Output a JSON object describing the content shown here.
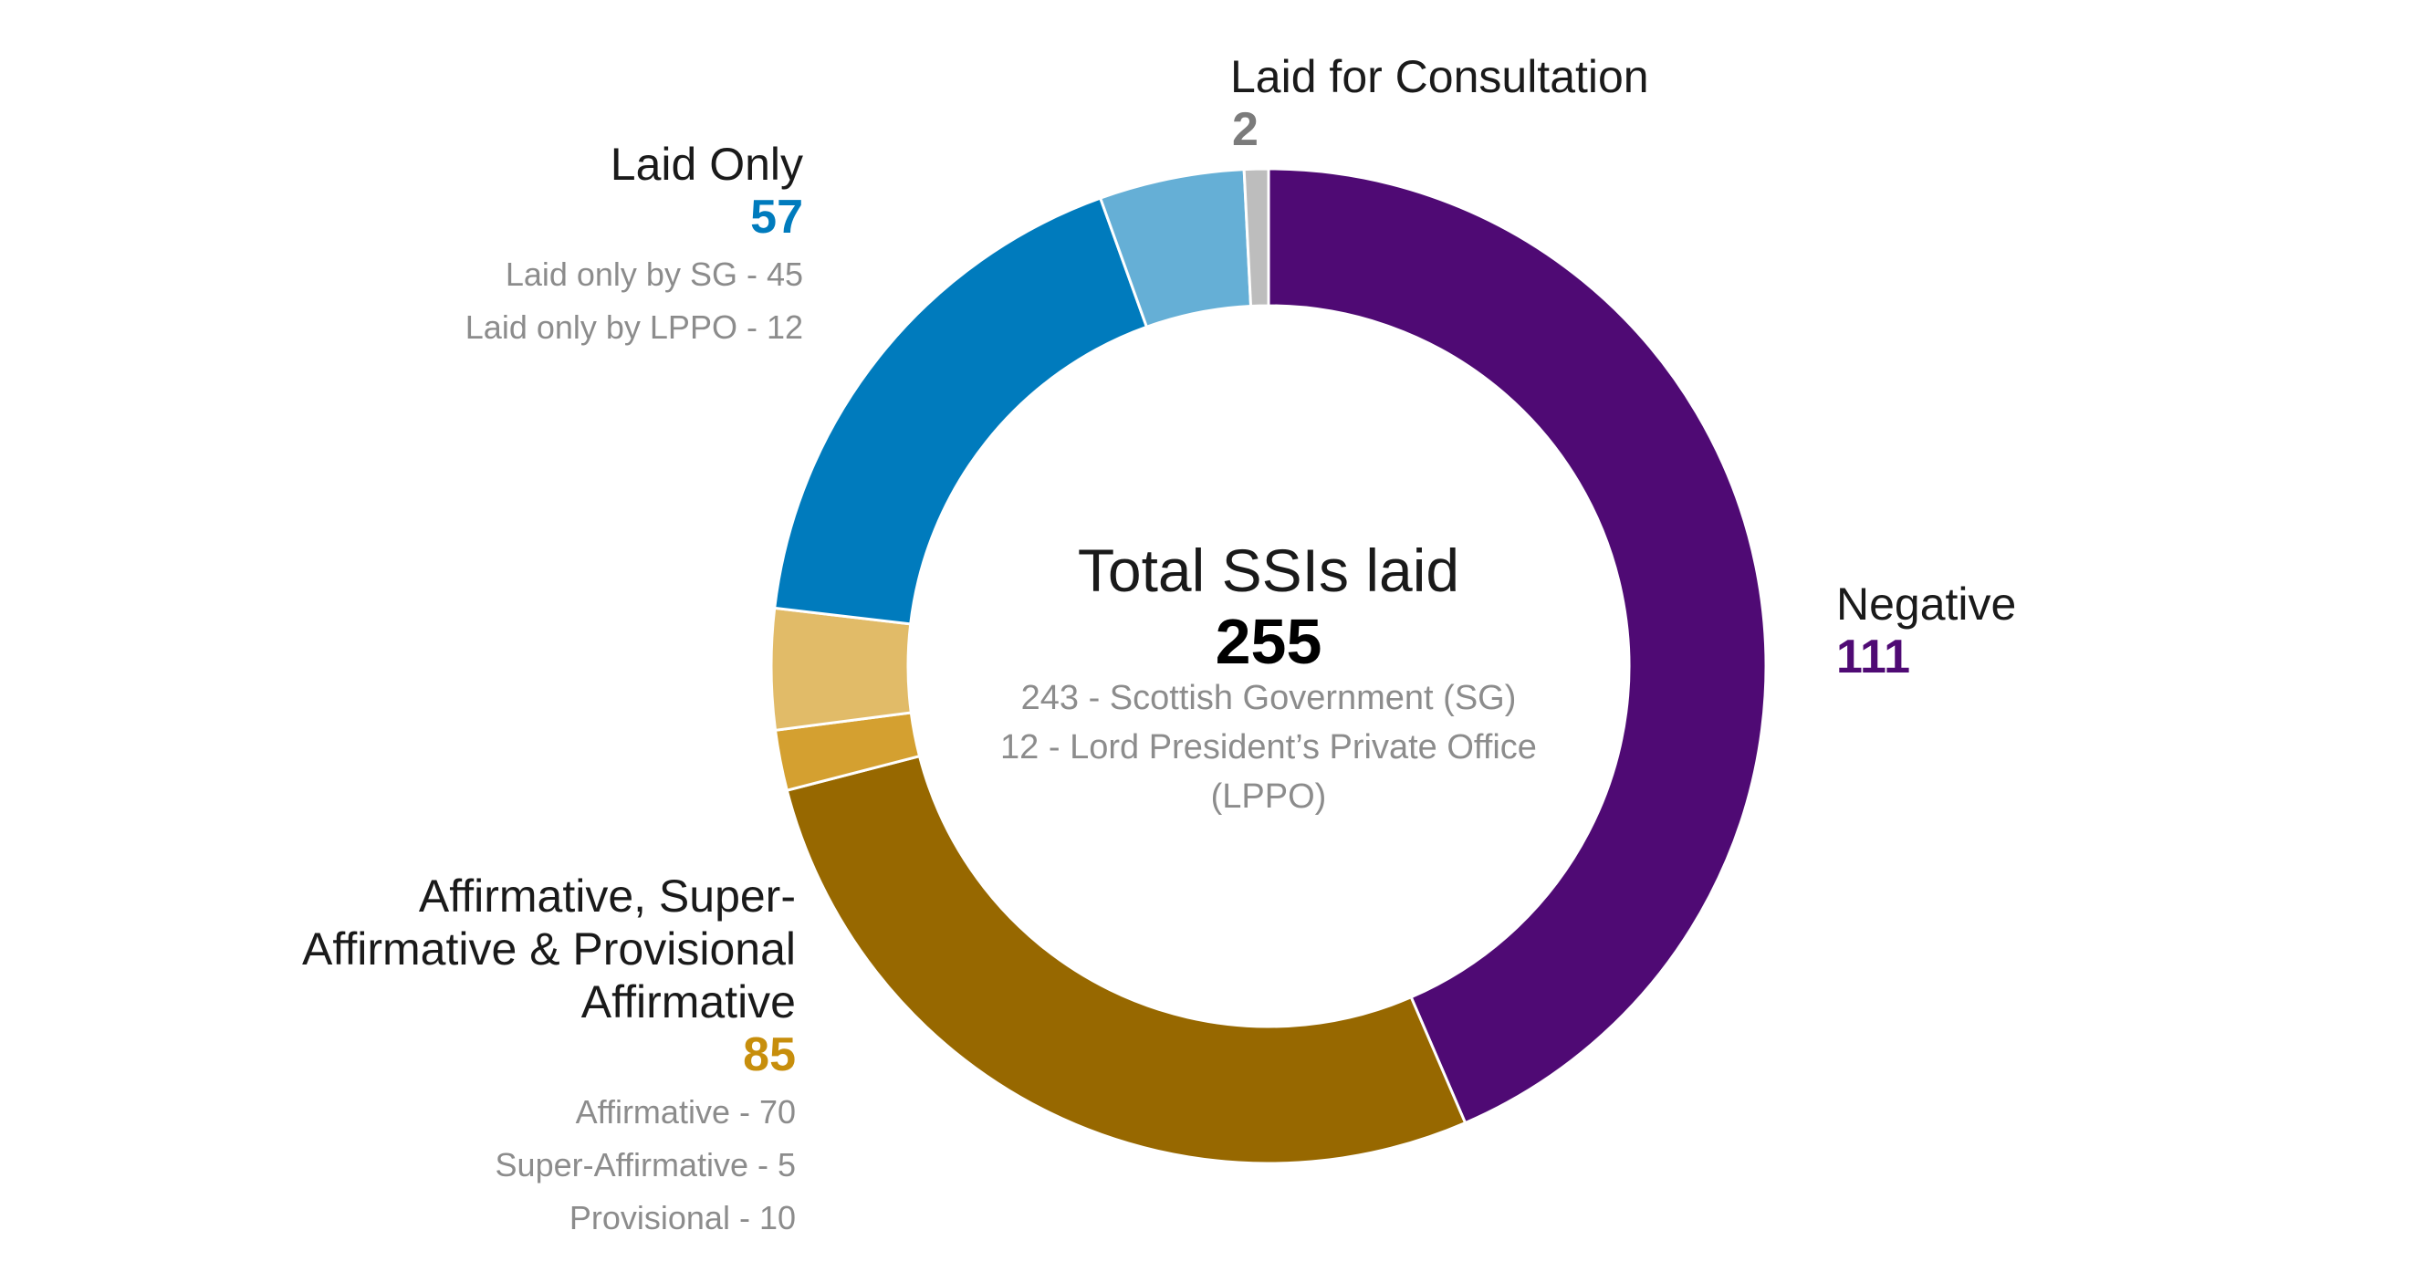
{
  "chart_data": {
    "type": "pie",
    "center": {
      "title": "Total SSIs laid",
      "total": "255",
      "lines": [
        "243 - Scottish Government (SG)",
        "12 - Lord President’s Private Office",
        "(LPPO)"
      ]
    },
    "slices": [
      {
        "key": "negative",
        "label": "Negative",
        "value": 111,
        "color": "#4f0a74"
      },
      {
        "key": "affirmative",
        "label": "Affirmative",
        "value": 70,
        "color": "#976800"
      },
      {
        "key": "super_affirmative",
        "label": "Super-Affirmative",
        "value": 5,
        "color": "#d4a030"
      },
      {
        "key": "provisional",
        "label": "Provisional",
        "value": 10,
        "color": "#e1bb68"
      },
      {
        "key": "laid_only_sg",
        "label": "Laid only by SG",
        "value": 45,
        "color": "#007bbd"
      },
      {
        "key": "laid_only_lppo",
        "label": "Laid only by LPPO",
        "value": 12,
        "color": "#65afd6"
      },
      {
        "key": "consultation",
        "label": "Laid for Consultation",
        "value": 2,
        "color": "#bdbdbd"
      }
    ],
    "groups": {
      "negative": {
        "label": "Negative",
        "value": "111",
        "color": "#4f0a74"
      },
      "affirmative": {
        "label_lines": [
          "Affirmative, Super-",
          "Affirmative & Provisional",
          "Affirmative"
        ],
        "value": "85",
        "color": "#c78e0c",
        "breakdown": [
          "Affirmative - 70",
          "Super-Affirmative - 5",
          "Provisional - 10"
        ]
      },
      "laid_only": {
        "label": "Laid Only",
        "value": "57",
        "color": "#007bbd",
        "breakdown": [
          "Laid only by SG - 45",
          "Laid only by LPPO - 12"
        ]
      },
      "consultation": {
        "label": "Laid for Consultation",
        "value": "2",
        "color": "#7b7b7b"
      }
    }
  }
}
